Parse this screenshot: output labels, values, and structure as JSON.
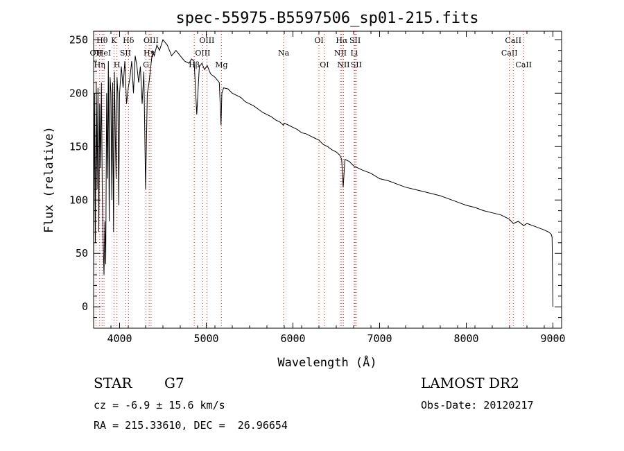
{
  "chart_data": {
    "type": "line",
    "title": "spec-55975-B5597506_sp01-215.fits",
    "xlabel": "Wavelength (Å)",
    "ylabel": "Flux (relative)",
    "xlim": [
      3700,
      9100
    ],
    "ylim": [
      -20,
      258
    ],
    "x_ticks": [
      4000,
      5000,
      6000,
      7000,
      8000,
      9000
    ],
    "y_ticks": [
      0,
      50,
      100,
      150,
      200,
      250
    ],
    "x_tick_labels": [
      "4000",
      "5000",
      "6000",
      "7000",
      "8000",
      "9000"
    ],
    "y_tick_labels": [
      "0",
      "50",
      "100",
      "150",
      "200",
      "250"
    ],
    "grid": false,
    "line_color": "#000000",
    "marker_color": "#ff0000",
    "spectrum": {
      "x": [
        3700,
        3710,
        3720,
        3730,
        3740,
        3750,
        3760,
        3770,
        3780,
        3790,
        3800,
        3810,
        3820,
        3830,
        3840,
        3850,
        3860,
        3870,
        3880,
        3890,
        3900,
        3910,
        3920,
        3930,
        3940,
        3950,
        3960,
        3970,
        3980,
        3990,
        4000,
        4020,
        4040,
        4060,
        4080,
        4100,
        4120,
        4140,
        4160,
        4180,
        4200,
        4220,
        4240,
        4260,
        4280,
        4300,
        4320,
        4340,
        4360,
        4380,
        4400,
        4430,
        4460,
        4500,
        4550,
        4600,
        4650,
        4700,
        4750,
        4800,
        4830,
        4860,
        4890,
        4920,
        4950,
        4980,
        5010,
        5050,
        5100,
        5150,
        5170,
        5180,
        5200,
        5250,
        5300,
        5350,
        5400,
        5450,
        5500,
        5550,
        5600,
        5650,
        5700,
        5750,
        5800,
        5850,
        5890,
        5900,
        5950,
        6000,
        6050,
        6100,
        6150,
        6200,
        6250,
        6300,
        6350,
        6400,
        6450,
        6500,
        6540,
        6562,
        6580,
        6600,
        6650,
        6700,
        6750,
        6800,
        6900,
        7000,
        7100,
        7200,
        7300,
        7400,
        7500,
        7600,
        7700,
        7800,
        7900,
        8000,
        8100,
        8200,
        8300,
        8400,
        8450,
        8498,
        8542,
        8600,
        8662,
        8700,
        8800,
        8900,
        8950,
        8980,
        8990,
        9000
      ],
      "flux": [
        30,
        200,
        60,
        210,
        110,
        205,
        70,
        190,
        130,
        210,
        110,
        60,
        30,
        80,
        40,
        200,
        120,
        230,
        80,
        215,
        200,
        100,
        210,
        70,
        220,
        160,
        120,
        215,
        200,
        95,
        200,
        225,
        205,
        230,
        190,
        205,
        215,
        230,
        200,
        235,
        225,
        210,
        225,
        190,
        220,
        110,
        200,
        210,
        225,
        240,
        235,
        245,
        240,
        250,
        245,
        235,
        240,
        235,
        230,
        228,
        232,
        230,
        180,
        225,
        228,
        222,
        226,
        218,
        215,
        210,
        170,
        200,
        205,
        204,
        200,
        198,
        196,
        192,
        190,
        188,
        185,
        182,
        180,
        178,
        175,
        173,
        170,
        172,
        170,
        168,
        166,
        163,
        162,
        160,
        158,
        156,
        152,
        150,
        147,
        145,
        142,
        138,
        112,
        138,
        136,
        132,
        130,
        128,
        125,
        120,
        118,
        115,
        112,
        110,
        108,
        106,
        104,
        101,
        98,
        95,
        93,
        90,
        88,
        86,
        84,
        82,
        78,
        80,
        76,
        78,
        75,
        72,
        70,
        68,
        65,
        0
      ]
    },
    "line_markers": [
      {
        "wavelength": 3727,
        "label": "OII",
        "row": 1
      },
      {
        "wavelength": 3770,
        "label": "Hη",
        "row": 2
      },
      {
        "wavelength": 3798,
        "label": "Hθ",
        "row": 0
      },
      {
        "wavelength": 3820,
        "label": "HeI",
        "row": 1
      },
      {
        "wavelength": 3934,
        "label": "K",
        "row": 0
      },
      {
        "wavelength": 3969,
        "label": "H",
        "row": 2
      },
      {
        "wavelength": 4068,
        "label": "SII",
        "row": 1
      },
      {
        "wavelength": 4102,
        "label": "Hδ",
        "row": 0
      },
      {
        "wavelength": 4304,
        "label": "G",
        "row": 2
      },
      {
        "wavelength": 4341,
        "label": "Hγ",
        "row": 1
      },
      {
        "wavelength": 4363,
        "label": "OIII",
        "row": 0
      },
      {
        "wavelength": 4861,
        "label": "Hβ",
        "row": 2
      },
      {
        "wavelength": 4959,
        "label": "OIII",
        "row": 1
      },
      {
        "wavelength": 5007,
        "label": "OIII",
        "row": 0
      },
      {
        "wavelength": 5175,
        "label": "Mg",
        "row": 2
      },
      {
        "wavelength": 5893,
        "label": "Na",
        "row": 1
      },
      {
        "wavelength": 6300,
        "label": "OI",
        "row": 0
      },
      {
        "wavelength": 6363,
        "label": "OI",
        "row": 2
      },
      {
        "wavelength": 6548,
        "label": "NII",
        "row": 1
      },
      {
        "wavelength": 6563,
        "label": "Hα",
        "row": 0
      },
      {
        "wavelength": 6583,
        "label": "NII",
        "row": 2
      },
      {
        "wavelength": 6707,
        "label": "Li",
        "row": 1
      },
      {
        "wavelength": 6717,
        "label": "SII",
        "row": 0
      },
      {
        "wavelength": 6731,
        "label": "SII",
        "row": 2
      },
      {
        "wavelength": 8498,
        "label": "CaII",
        "row": 1
      },
      {
        "wavelength": 8542,
        "label": "CaII",
        "row": 0
      },
      {
        "wavelength": 8662,
        "label": "CaII",
        "row": 2
      }
    ]
  },
  "info": {
    "object_class": "STAR",
    "subclass": "G7",
    "survey": "LAMOST DR2",
    "redshift": "cz = -6.9 ± 15.6 km/s",
    "obs_date": "Obs-Date: 20120217",
    "coords": "RA = 215.33610, DEC =  26.96654"
  }
}
